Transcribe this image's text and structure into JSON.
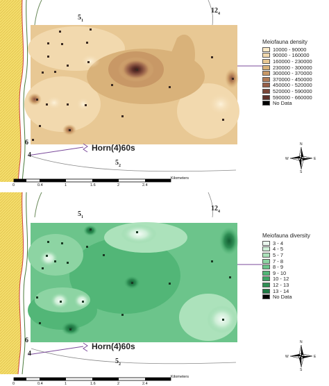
{
  "maps": [
    {
      "id": "density",
      "legend_title": "Meiofauna density",
      "classes": [
        {
          "label": "10000 - 90000",
          "color": "#fbe9c6"
        },
        {
          "label": "90000 - 160000",
          "color": "#f2d9ae"
        },
        {
          "label": "160000 - 230000",
          "color": "#e8c894"
        },
        {
          "label": "230000 - 300000",
          "color": "#d9b27a"
        },
        {
          "label": "300000 - 370000",
          "color": "#c89866"
        },
        {
          "label": "370000 - 450000",
          "color": "#b07a56"
        },
        {
          "label": "450000 - 520000",
          "color": "#965f48"
        },
        {
          "label": "520000 - 590000",
          "color": "#7a4638"
        },
        {
          "label": "590000 - 660000",
          "color": "#5e3029"
        },
        {
          "label": "No Data",
          "color": "#000000"
        }
      ]
    },
    {
      "id": "diversity",
      "legend_title": "Meiofauna diversity",
      "classes": [
        {
          "label": "3 - 4",
          "color": "#eaf7ee"
        },
        {
          "label": "4 - 5",
          "color": "#cdeed6"
        },
        {
          "label": "5 - 7",
          "color": "#ace2bb"
        },
        {
          "label": "7 - 8",
          "color": "#8dd4a3"
        },
        {
          "label": "8 - 9",
          "color": "#6cc48b"
        },
        {
          "label": "9 - 10",
          "color": "#52b677"
        },
        {
          "label": "10 - 12",
          "color": "#40a466"
        },
        {
          "label": "12 - 13",
          "color": "#2f8f55"
        },
        {
          "label": "13 - 14",
          "color": "#1f7a44"
        },
        {
          "label": "No Data",
          "color": "#000000"
        }
      ]
    }
  ],
  "chart_labels": {
    "horn": "Horn(4)60s",
    "depth_51": "5",
    "depth_51_sub": "1",
    "depth_124": "12",
    "depth_124_sub": "4",
    "depth_52": "5",
    "depth_52_sub": "2",
    "depth_4": "4",
    "depth_6": "6"
  },
  "scale_bar": {
    "ticks": [
      "0",
      "0.4",
      "1",
      "1.6",
      "2",
      "2.4"
    ],
    "units": "Kilometers"
  },
  "compass": {
    "n": "N",
    "s": "S",
    "e": "E",
    "w": "W"
  }
}
